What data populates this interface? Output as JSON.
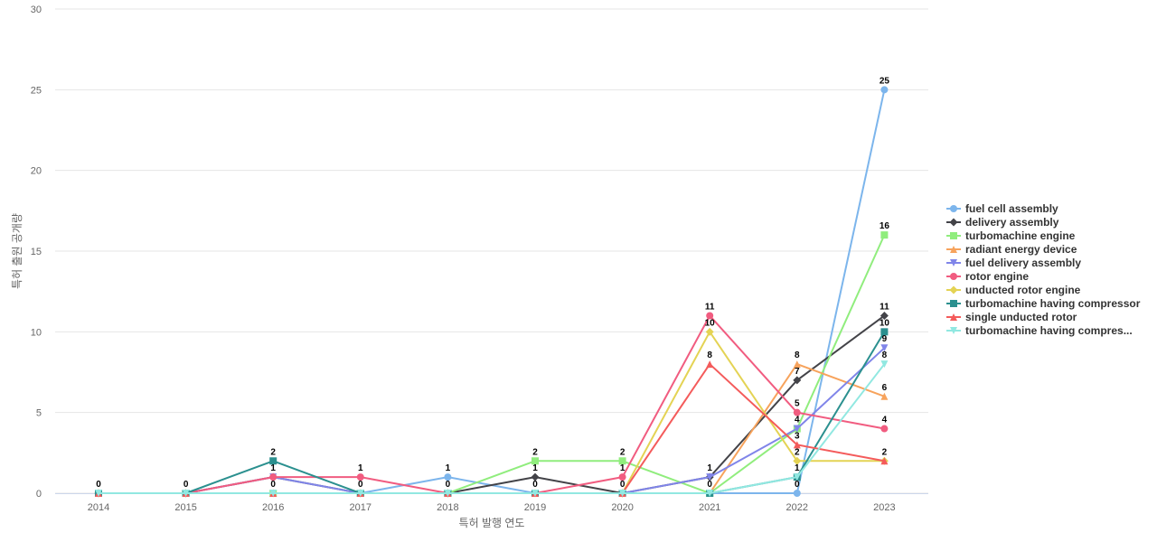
{
  "chart_data": {
    "type": "line",
    "xlabel": "특허 발행 연도",
    "ylabel": "특허 출원 공개량",
    "ylim": [
      0,
      30
    ],
    "yticks": [
      0,
      5,
      10,
      15,
      20,
      25,
      30
    ],
    "grid": true,
    "legend_position": "right",
    "categories": [
      "2014",
      "2015",
      "2016",
      "2017",
      "2018",
      "2019",
      "2020",
      "2021",
      "2022",
      "2023"
    ],
    "series": [
      {
        "name": "fuel cell assembly",
        "color": "#7cb5ec",
        "marker": "circle",
        "values": [
          0,
          0,
          0,
          0,
          1,
          0,
          0,
          0,
          0,
          25
        ]
      },
      {
        "name": "delivery assembly",
        "color": "#434348",
        "marker": "diamond",
        "values": [
          0,
          0,
          1,
          0,
          0,
          1,
          0,
          1,
          7,
          11
        ]
      },
      {
        "name": "turbomachine engine",
        "color": "#90ed7d",
        "marker": "square",
        "values": [
          0,
          0,
          0,
          0,
          0,
          2,
          2,
          0,
          4,
          16
        ]
      },
      {
        "name": "radiant energy device",
        "color": "#f7a35c",
        "marker": "triangle",
        "values": [
          0,
          0,
          0,
          0,
          0,
          0,
          0,
          0,
          8,
          6
        ]
      },
      {
        "name": "fuel delivery assembly",
        "color": "#8085e9",
        "marker": "triangle-down",
        "values": [
          0,
          0,
          1,
          0,
          0,
          0,
          0,
          1,
          4,
          9
        ]
      },
      {
        "name": "rotor engine",
        "color": "#f15c80",
        "marker": "circle",
        "values": [
          0,
          0,
          1,
          1,
          0,
          0,
          1,
          11,
          5,
          4
        ]
      },
      {
        "name": "unducted rotor engine",
        "color": "#e4d354",
        "marker": "diamond",
        "values": [
          0,
          0,
          0,
          0,
          0,
          0,
          0,
          10,
          2,
          2
        ]
      },
      {
        "name": "turbomachine having compressor",
        "color": "#2b908f",
        "marker": "square",
        "values": [
          0,
          0,
          2,
          0,
          0,
          0,
          0,
          0,
          1,
          10
        ]
      },
      {
        "name": "single unducted rotor",
        "color": "#f45b5b",
        "marker": "triangle",
        "values": [
          0,
          0,
          0,
          0,
          0,
          0,
          0,
          8,
          3,
          2
        ]
      },
      {
        "name": "turbomachine having compres...",
        "color": "#91e8e1",
        "marker": "triangle-down",
        "values": [
          0,
          0,
          0,
          0,
          0,
          0,
          0,
          0,
          1,
          8
        ]
      }
    ],
    "data_labels": [
      {
        "category": "2014",
        "value": 0,
        "text": "0"
      },
      {
        "category": "2015",
        "value": 0,
        "text": "0"
      },
      {
        "category": "2016",
        "value": 2,
        "text": "2"
      },
      {
        "category": "2016",
        "value": 1,
        "text": "1"
      },
      {
        "category": "2016",
        "value": 0,
        "text": "0"
      },
      {
        "category": "2017",
        "value": 1,
        "text": "1"
      },
      {
        "category": "2017",
        "value": 0,
        "text": "0"
      },
      {
        "category": "2018",
        "value": 1,
        "text": "1"
      },
      {
        "category": "2018",
        "value": 0,
        "text": "0"
      },
      {
        "category": "2019",
        "value": 2,
        "text": "2"
      },
      {
        "category": "2019",
        "value": 1,
        "text": "1"
      },
      {
        "category": "2019",
        "value": 0,
        "text": "0"
      },
      {
        "category": "2020",
        "value": 2,
        "text": "2"
      },
      {
        "category": "2020",
        "value": 1,
        "text": "1"
      },
      {
        "category": "2020",
        "value": 0,
        "text": "0"
      },
      {
        "category": "2021",
        "value": 11,
        "text": "11"
      },
      {
        "category": "2021",
        "value": 10,
        "text": "10"
      },
      {
        "category": "2021",
        "value": 8,
        "text": "8"
      },
      {
        "category": "2021",
        "value": 1,
        "text": "1"
      },
      {
        "category": "2021",
        "value": 0,
        "text": "0"
      },
      {
        "category": "2022",
        "value": 8,
        "text": "8"
      },
      {
        "category": "2022",
        "value": 7,
        "text": "7"
      },
      {
        "category": "2022",
        "value": 5,
        "text": "5"
      },
      {
        "category": "2022",
        "value": 4,
        "text": "4"
      },
      {
        "category": "2022",
        "value": 3,
        "text": "3"
      },
      {
        "category": "2022",
        "value": 2,
        "text": "2"
      },
      {
        "category": "2022",
        "value": 1,
        "text": "1"
      },
      {
        "category": "2022",
        "value": 0,
        "text": "0"
      },
      {
        "category": "2023",
        "value": 25,
        "text": "25"
      },
      {
        "category": "2023",
        "value": 16,
        "text": "16"
      },
      {
        "category": "2023",
        "value": 11,
        "text": "11"
      },
      {
        "category": "2023",
        "value": 10,
        "text": "10"
      },
      {
        "category": "2023",
        "value": 9,
        "text": "9"
      },
      {
        "category": "2023",
        "value": 8,
        "text": "8"
      },
      {
        "category": "2023",
        "value": 6,
        "text": "6"
      },
      {
        "category": "2023",
        "value": 4,
        "text": "4"
      },
      {
        "category": "2023",
        "value": 2,
        "text": "2"
      }
    ]
  }
}
